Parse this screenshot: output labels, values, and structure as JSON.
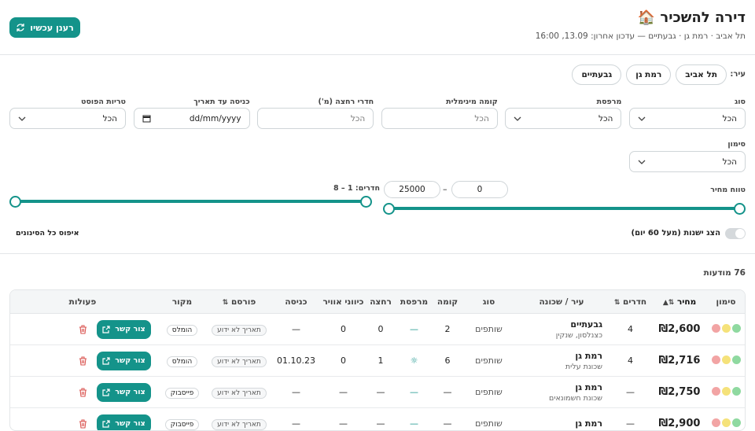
{
  "header": {
    "icon": "🏠",
    "title": "דירה להשכיר",
    "subtitle": "תל אביב · רמת גן · גבעתיים — עדכון אחרון: 13.09, 16:00",
    "refresh": "רענן עכשיו"
  },
  "filters": {
    "city_label": "עיר:",
    "cities": [
      "תל אביב",
      "רמת גן",
      "גבעתיים"
    ],
    "fields": [
      {
        "label": "סוג",
        "value": "הכל"
      },
      {
        "label": "מרפסת",
        "value": "הכל"
      },
      {
        "label": "קומה מינימלית",
        "value": "הכל"
      },
      {
        "label": "חדרי רחצה (מ')",
        "value": "הכל"
      },
      {
        "label": "כניסה עד תאריך",
        "value": "dd/mm/yyyy"
      },
      {
        "label": "טריות הפוסט",
        "value": "הכל"
      }
    ],
    "mark": {
      "label": "סימון",
      "value": "הכל"
    },
    "price": {
      "label": "טווח מחיר",
      "min": "0",
      "sep": "–",
      "max": "25000"
    },
    "rooms": {
      "label": "חדרים: 1 – 8"
    },
    "show_old": "הצג ישנות (מעל 60 יום)",
    "reset": "איפוס כל הסינונים"
  },
  "count": "76 מודעות",
  "table": {
    "headers": [
      "סימון",
      "מחיר",
      "חדרים",
      "עיר / שכונה",
      "סוג",
      "קומה",
      "מרפסת",
      "רחצה",
      "כיווני אוויר",
      "כניסה",
      "פורסם",
      "מקור",
      "פעולות"
    ],
    "rows": [
      {
        "price": "₪2,600",
        "rooms": "4",
        "city": "גבעתיים",
        "hood": "כצנלסון, שנקין",
        "type": "שותפים",
        "floor": "2",
        "balcony": "—",
        "bath": "0",
        "air": "0",
        "entry": "—",
        "posted": "תאריך לא ידוע",
        "source": "הומלס",
        "action": "צור קשר"
      },
      {
        "price": "₪2,716",
        "rooms": "4",
        "city": "רמת גן",
        "hood": "שכונת עלית",
        "type": "שותפים",
        "floor": "6",
        "balcony": "☼",
        "bath": "1",
        "air": "0",
        "entry": "01.10.23",
        "posted": "תאריך לא ידוע",
        "source": "הומלס",
        "action": "צור קשר"
      },
      {
        "price": "₪2,750",
        "rooms": "—",
        "city": "רמת גן",
        "hood": "שכונת חשמונאים",
        "type": "שותפים",
        "floor": "—",
        "balcony": "—",
        "bath": "—",
        "air": "—",
        "entry": "—",
        "posted": "תאריך לא ידוע",
        "source": "פייסבוק",
        "action": "צור קשר"
      },
      {
        "price": "₪2,900",
        "rooms": "—",
        "city": "רמת גן",
        "hood": "",
        "type": "שותפים",
        "floor": "—",
        "balcony": "—",
        "bath": "—",
        "air": "—",
        "entry": "—",
        "posted": "תאריך לא ידוע",
        "source": "פייסבוק",
        "action": "צור קשר"
      }
    ]
  }
}
